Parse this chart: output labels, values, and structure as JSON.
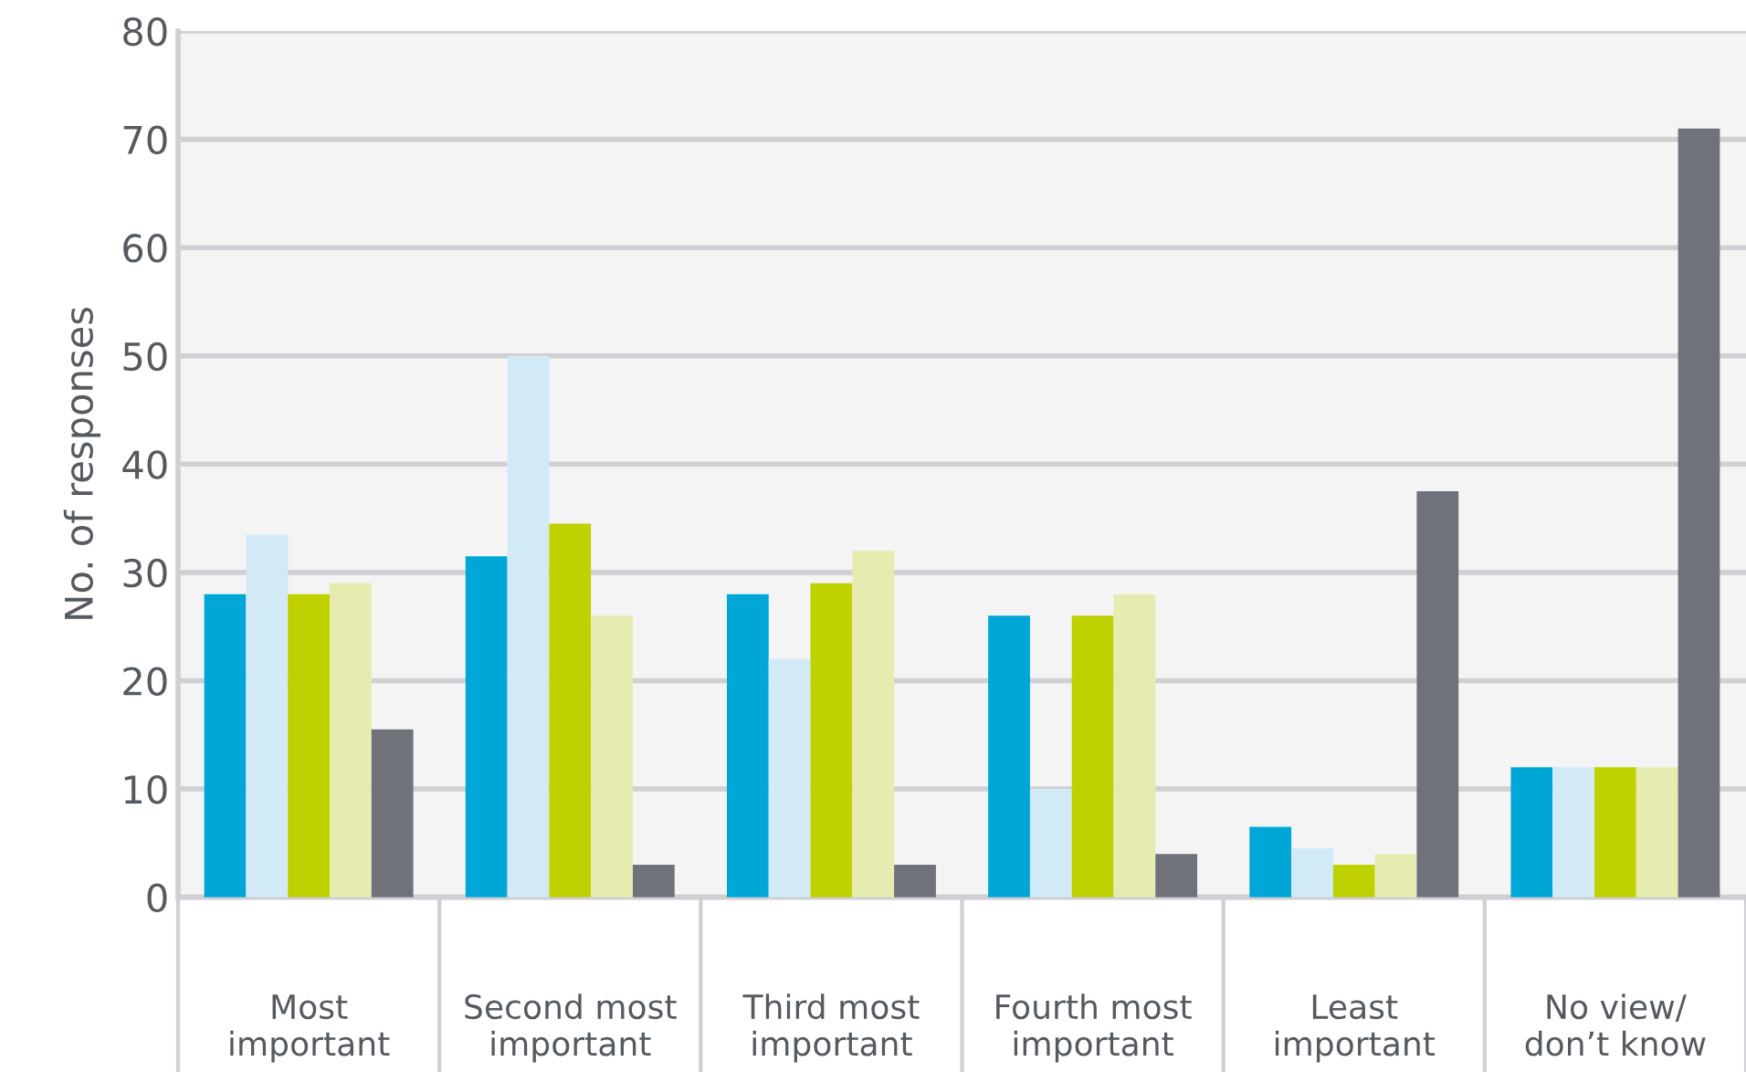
{
  "chart_data": {
    "type": "bar",
    "ylabel": "No. of responses",
    "categories": [
      "Most\nimportant",
      "Second most\nimportant",
      "Third most\nimportant",
      "Fourth most\nimportant",
      "Least\nimportant",
      "No view/\ndon’t know"
    ],
    "series": [
      {
        "color": "#00a7d6",
        "values": [
          28,
          31.5,
          28,
          26,
          6.5,
          12
        ]
      },
      {
        "color": "#d2e9f6",
        "values": [
          33.5,
          50,
          22,
          10,
          4.5,
          12
        ]
      },
      {
        "color": "#bfd100",
        "values": [
          28,
          34.5,
          29,
          26,
          3,
          12
        ]
      },
      {
        "color": "#e6ecb0",
        "values": [
          29,
          26,
          32,
          28,
          4,
          12
        ]
      },
      {
        "color": "#6f727b",
        "values": [
          15.5,
          3,
          3,
          4,
          37.5,
          71
        ]
      }
    ],
    "ylim": [
      0,
      80
    ],
    "yticks": [
      0,
      10,
      20,
      30,
      40,
      50,
      60,
      70,
      80
    ],
    "grid": "y",
    "legend": false
  }
}
